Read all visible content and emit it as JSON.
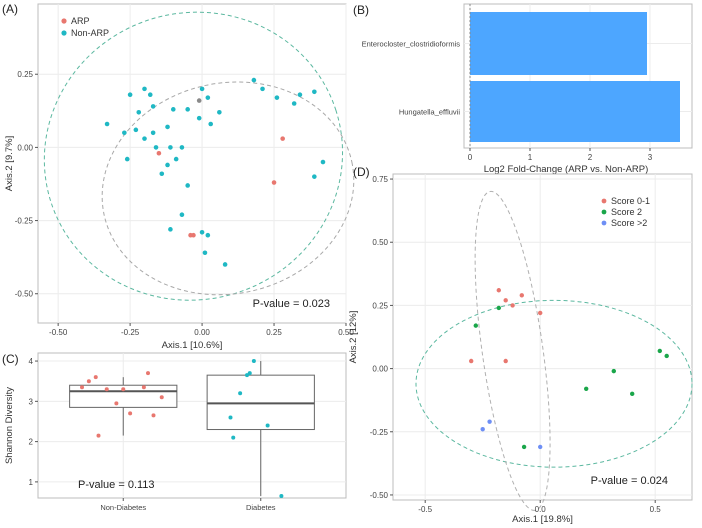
{
  "chart_data": [
    {
      "id": "A",
      "panel_label": "(A)",
      "type": "scatter",
      "xlabel": "Axis.1   [10.6%]",
      "ylabel": "Axis.2   [9.7%]",
      "xlim": [
        -0.57,
        0.5
      ],
      "ylim": [
        -0.6,
        0.49
      ],
      "xticks": [
        -0.5,
        -0.25,
        0.0,
        0.25,
        0.5
      ],
      "xtick_labels": [
        "-0.50",
        "-0.25",
        "0.00",
        "0.25",
        "0.50"
      ],
      "yticks": [
        -0.5,
        -0.25,
        0.0,
        0.25
      ],
      "ytick_labels": [
        "-0.50",
        "-0.25",
        "0.00",
        "0.25"
      ],
      "legend": [
        {
          "name": "ARP",
          "color": "#e8776f"
        },
        {
          "name": "Non-ARP",
          "color": "#1fb8c4"
        }
      ],
      "annotation": "P-value = 0.023",
      "series": [
        {
          "name": "ARP",
          "color": "#e8776f",
          "points": [
            [
              -0.15,
              -0.02
            ],
            [
              -0.03,
              -0.3
            ],
            [
              -0.04,
              -0.3
            ],
            [
              0.28,
              0.03
            ],
            [
              0.25,
              -0.12
            ]
          ]
        },
        {
          "name": "Non-ARP",
          "color": "#1fb8c4",
          "points": [
            [
              -0.33,
              0.08
            ],
            [
              -0.25,
              0.18
            ],
            [
              -0.2,
              0.2
            ],
            [
              -0.18,
              0.18
            ],
            [
              -0.17,
              0.14
            ],
            [
              -0.22,
              0.12
            ],
            [
              -0.27,
              0.05
            ],
            [
              -0.23,
              0.06
            ],
            [
              -0.17,
              0.05
            ],
            [
              -0.2,
              0.03
            ],
            [
              -0.16,
              0.0
            ],
            [
              -0.12,
              0.07
            ],
            [
              -0.11,
              0.0
            ],
            [
              -0.09,
              -0.04
            ],
            [
              -0.07,
              0.0
            ],
            [
              -0.12,
              -0.06
            ],
            [
              -0.14,
              -0.09
            ],
            [
              -0.1,
              0.13
            ],
            [
              -0.05,
              0.13
            ],
            [
              0.0,
              0.2
            ],
            [
              0.02,
              0.17
            ],
            [
              -0.01,
              0.1
            ],
            [
              0.03,
              0.08
            ],
            [
              0.06,
              0.12
            ],
            [
              -0.05,
              -0.13
            ],
            [
              -0.07,
              -0.23
            ],
            [
              0.0,
              -0.29
            ],
            [
              0.02,
              -0.3
            ],
            [
              0.01,
              -0.36
            ],
            [
              -0.11,
              -0.28
            ],
            [
              0.08,
              -0.4
            ],
            [
              0.18,
              0.23
            ],
            [
              0.21,
              0.2
            ],
            [
              0.26,
              0.17
            ],
            [
              0.32,
              0.15
            ],
            [
              0.34,
              0.18
            ],
            [
              0.39,
              0.19
            ],
            [
              0.39,
              -0.1
            ],
            [
              0.42,
              -0.05
            ],
            [
              -0.26,
              -0.04
            ]
          ]
        },
        {
          "name": "centroid",
          "color": "#8a8a8a",
          "points": [
            [
              -0.01,
              0.16
            ]
          ]
        }
      ],
      "ellipses": [
        {
          "group": "Non-ARP",
          "cx": -0.03,
          "cy": -0.03,
          "rx": 0.52,
          "ry": 0.49,
          "angle_deg": -18
        },
        {
          "group": "ARP",
          "cx": 0.09,
          "cy": -0.14,
          "rx": 0.44,
          "ry": 0.36,
          "angle_deg": -12
        }
      ]
    },
    {
      "id": "B",
      "panel_label": "(B)",
      "type": "bar",
      "orientation": "horizontal",
      "categories": [
        "Enterocloster_clostridioformis",
        "Hungatella_effluvii"
      ],
      "values": [
        2.95,
        3.5
      ],
      "color": "#4da6ff",
      "xlabel": "Log2 Fold-Change (ARP vs. Non-ARP)",
      "xlim": [
        -0.1,
        3.7
      ],
      "xticks": [
        0,
        1,
        2,
        3
      ],
      "xtick_labels": [
        "0",
        "1",
        "2",
        "3"
      ]
    },
    {
      "id": "C",
      "panel_label": "(C)",
      "type": "box",
      "categories": [
        "Non-Diabetes",
        "Diabetes"
      ],
      "ylabel": "Shannon Diversity",
      "ylim": [
        0.6,
        4.2
      ],
      "yticks": [
        1,
        2,
        3,
        4
      ],
      "ytick_labels": [
        "1",
        "2",
        "3",
        "4"
      ],
      "annotation": "P-value = 0.113",
      "boxes": [
        {
          "category": "Non-Diabetes",
          "min": 2.15,
          "q1": 2.85,
          "median": 3.25,
          "q3": 3.4,
          "max": 3.6
        },
        {
          "category": "Diabetes",
          "min": 0.65,
          "q1": 2.3,
          "median": 2.95,
          "q3": 3.65,
          "max": 4.0
        }
      ],
      "series": [
        {
          "name": "ARP",
          "color": "#e8776f",
          "points": [
            [
              -0.25,
              3.5
            ],
            [
              -0.2,
              3.6
            ],
            [
              -0.12,
              3.3
            ],
            [
              -0.05,
              2.95
            ],
            [
              0.05,
              2.7
            ],
            [
              0.15,
              3.35
            ],
            [
              0.22,
              2.65
            ],
            [
              -0.3,
              3.35
            ],
            [
              0.28,
              3.1
            ],
            [
              -0.18,
              2.15
            ],
            [
              0.0,
              3.3
            ],
            [
              0.18,
              3.7
            ]
          ]
        },
        {
          "name": "Non-ARP",
          "color": "#1fb8c4",
          "points": [
            [
              0.85,
              3.2
            ],
            [
              0.9,
              3.65
            ],
            [
              0.92,
              3.7
            ],
            [
              0.8,
              2.1
            ],
            [
              0.78,
              2.6
            ],
            [
              1.05,
              2.4
            ],
            [
              1.15,
              0.65
            ],
            [
              0.95,
              4.0
            ]
          ]
        }
      ]
    },
    {
      "id": "D",
      "panel_label": "(D)",
      "type": "scatter",
      "xlabel": "Axis.1   [19.8%]",
      "ylabel": "Axis.2   [12%]",
      "xlim": [
        -0.64,
        0.66
      ],
      "ylim": [
        -0.52,
        0.77
      ],
      "xticks": [
        -0.5,
        0.0,
        0.5
      ],
      "xtick_labels": [
        "-0.5",
        "0.0",
        "0.5"
      ],
      "yticks": [
        -0.5,
        -0.25,
        0.0,
        0.25,
        0.5,
        0.75
      ],
      "ytick_labels": [
        "-0.50",
        "-0.25",
        "0.00",
        "0.25",
        "0.50",
        "0.75"
      ],
      "legend": [
        {
          "name": "Score 0-1",
          "color": "#e8776f"
        },
        {
          "name": "Score 2",
          "color": "#1aa64a"
        },
        {
          "name": "Score >2",
          "color": "#6e8ff5"
        }
      ],
      "annotation": "P-value = 0.024",
      "series": [
        {
          "name": "Score 0-1",
          "color": "#e8776f",
          "points": [
            [
              -0.18,
              0.31
            ],
            [
              -0.08,
              0.29
            ],
            [
              -0.12,
              0.25
            ],
            [
              -0.15,
              0.27
            ],
            [
              0.0,
              0.22
            ],
            [
              -0.3,
              0.03
            ],
            [
              -0.15,
              0.03
            ]
          ]
        },
        {
          "name": "Score 2",
          "color": "#1aa64a",
          "points": [
            [
              -0.28,
              0.17
            ],
            [
              -0.18,
              0.24
            ],
            [
              0.52,
              0.07
            ],
            [
              0.55,
              0.05
            ],
            [
              0.2,
              -0.08
            ],
            [
              0.4,
              -0.1
            ],
            [
              -0.07,
              -0.31
            ],
            [
              0.32,
              -0.01
            ]
          ]
        },
        {
          "name": "Score >2",
          "color": "#6e8ff5",
          "points": [
            [
              -0.22,
              -0.21
            ],
            [
              -0.25,
              -0.24
            ],
            [
              0.0,
              -0.31
            ]
          ]
        }
      ],
      "ellipses": [
        {
          "group": "Score 2",
          "cx": 0.06,
          "cy": -0.06,
          "rx": 0.6,
          "ry": 0.33,
          "angle_deg": 0
        },
        {
          "group": "Score 0-1",
          "cx": -0.12,
          "cy": 0.07,
          "rx": 0.7,
          "ry": 0.12,
          "angle_deg": 82
        }
      ]
    }
  ]
}
